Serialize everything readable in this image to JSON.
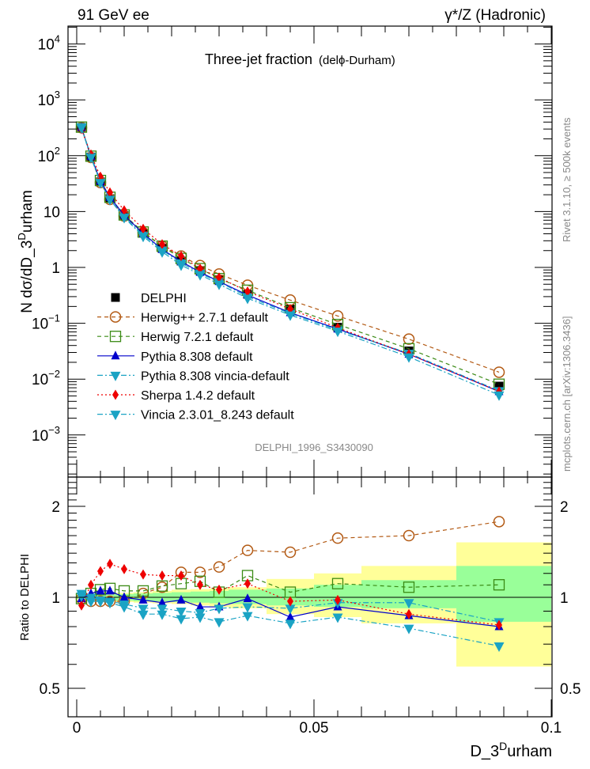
{
  "header": {
    "left_label": "91 GeV ee",
    "right_label": "γ*/Z (Hadronic)"
  },
  "side_labels": {
    "rivet": "Rivet 3.1.10, ≥ 500k events",
    "mcplots": "mcplots.cern.ch [arXiv:1306.3436]"
  },
  "watermark": "DELPHI_1996_S3430090",
  "chart_data": [
    {
      "type": "line",
      "panel": "main",
      "title": "Three-jet fraction",
      "subtitle": "(delϕ-Durham)",
      "xlabel": "D_3^Durham",
      "ylabel": "N dσ/dD_3^Durham",
      "yscale": "log",
      "ylim": [
        0.0002,
        20000
      ],
      "xlim": [
        -0.0015,
        0.1015
      ],
      "ytick_labels": [
        "10^4",
        "10^3",
        "10^2",
        "10",
        "1",
        "10^-1",
        "10^-2",
        "10^-3"
      ],
      "ytick_values": [
        10000,
        1000,
        100,
        10,
        1,
        0.1,
        0.01,
        0.001
      ],
      "legend_position": "center-left",
      "x": [
        0.001,
        0.003,
        0.005,
        0.007,
        0.01,
        0.014,
        0.018,
        0.022,
        0.026,
        0.03,
        0.036,
        0.045,
        0.055,
        0.07,
        0.089
      ],
      "series": [
        {
          "name": "DELPHI",
          "color": "#000000",
          "marker": "square-filled",
          "line": "none",
          "values": [
            320,
            95,
            34,
            17,
            8.5,
            4.1,
            2.2,
            1.3,
            0.88,
            0.6,
            0.33,
            0.18,
            0.085,
            0.032,
            0.0075
          ]
        },
        {
          "name": "Herwig++ 2.7.1 default",
          "color": "#b35a14",
          "marker": "circle-open",
          "line": "dashed",
          "values": [
            318,
            93,
            33,
            16.5,
            8.3,
            4.2,
            2.4,
            1.6,
            1.08,
            0.76,
            0.48,
            0.26,
            0.135,
            0.052,
            0.0133
          ]
        },
        {
          "name": "Herwig 7.2.1 default",
          "color": "#3a8a14",
          "marker": "square-open",
          "line": "dashed",
          "values": [
            325,
            98,
            36,
            18,
            8.7,
            4.3,
            2.4,
            1.45,
            0.95,
            0.63,
            0.39,
            0.19,
            0.095,
            0.035,
            0.0081
          ]
        },
        {
          "name": "Pythia 8.308 default",
          "color": "#0000cc",
          "marker": "triangle-up",
          "line": "solid",
          "values": [
            322,
            97,
            35,
            18,
            8.6,
            4.05,
            2.1,
            1.28,
            0.82,
            0.56,
            0.32,
            0.155,
            0.079,
            0.028,
            0.006
          ]
        },
        {
          "name": "Pythia 8.308 vincia-default",
          "color": "#1aa3c4",
          "marker": "triangle-down",
          "line": "dashdot",
          "values": [
            330,
            96,
            33,
            16.5,
            8.0,
            3.8,
            2.05,
            1.2,
            0.78,
            0.55,
            0.3,
            0.15,
            0.076,
            0.029,
            0.0062
          ]
        },
        {
          "name": "Sherpa 1.4.2 default",
          "color": "#ee0000",
          "marker": "diamond",
          "line": "dotted",
          "values": [
            300,
            105,
            42,
            22,
            10.5,
            4.9,
            2.6,
            1.6,
            0.95,
            0.66,
            0.37,
            0.18,
            0.083,
            0.028,
            0.006
          ]
        },
        {
          "name": "Vincia 2.3.01_8.243 default",
          "color": "#1aa3c4",
          "marker": "triangle-down",
          "line": "dashdot",
          "values": [
            315,
            93,
            33,
            16.5,
            7.8,
            3.6,
            1.9,
            1.1,
            0.74,
            0.5,
            0.28,
            0.14,
            0.072,
            0.025,
            0.0052
          ]
        }
      ]
    },
    {
      "type": "line",
      "panel": "ratio",
      "ylabel": "Ratio to DELPHI",
      "xlabel": "D_3^Durham",
      "yscale": "log",
      "ylim": [
        0.4,
        2.5
      ],
      "xlim": [
        -0.0015,
        0.1015
      ],
      "ytick_labels": [
        "0.5",
        "1",
        "2"
      ],
      "ytick_values": [
        0.5,
        1,
        2
      ],
      "xtick_labels": [
        "0",
        "0.05",
        "0.1"
      ],
      "xtick_values": [
        0,
        0.05,
        0.1
      ],
      "x": [
        0.001,
        0.003,
        0.005,
        0.007,
        0.01,
        0.014,
        0.018,
        0.022,
        0.026,
        0.03,
        0.036,
        0.045,
        0.055,
        0.07,
        0.089
      ],
      "bands": {
        "bin_edges": [
          0.0,
          0.002,
          0.004,
          0.006,
          0.008,
          0.012,
          0.016,
          0.02,
          0.024,
          0.028,
          0.032,
          0.04,
          0.05,
          0.06,
          0.08,
          0.1
        ],
        "stat_color": "#99ff99",
        "total_color": "#ffff99",
        "stat_lo": [
          0.99,
          0.99,
          0.985,
          0.98,
          0.975,
          0.97,
          0.97,
          0.965,
          0.96,
          0.955,
          0.95,
          0.94,
          0.93,
          0.92,
          0.83
        ],
        "stat_hi": [
          1.01,
          1.01,
          1.015,
          1.02,
          1.025,
          1.03,
          1.035,
          1.04,
          1.045,
          1.05,
          1.06,
          1.07,
          1.1,
          1.14,
          1.27
        ],
        "tot_lo": [
          0.985,
          0.98,
          0.975,
          0.97,
          0.965,
          0.96,
          0.955,
          0.95,
          0.94,
          0.93,
          0.92,
          0.88,
          0.86,
          0.82,
          0.59
        ],
        "tot_hi": [
          1.015,
          1.02,
          1.025,
          1.03,
          1.035,
          1.04,
          1.05,
          1.06,
          1.065,
          1.07,
          1.08,
          1.15,
          1.2,
          1.27,
          1.52
        ]
      },
      "series": [
        {
          "name": "Herwig++ 2.7.1 default",
          "color": "#b35a14",
          "marker": "circle-open",
          "line": "dashed",
          "values": [
            0.99,
            0.97,
            0.97,
            0.97,
            0.97,
            1.03,
            1.08,
            1.21,
            1.21,
            1.26,
            1.43,
            1.41,
            1.57,
            1.6,
            1.78
          ]
        },
        {
          "name": "Herwig 7.2.1 default",
          "color": "#3a8a14",
          "marker": "square-open",
          "line": "dashed",
          "values": [
            0.99,
            1.03,
            1.06,
            1.07,
            1.05,
            1.05,
            1.09,
            1.11,
            1.13,
            1.04,
            1.18,
            1.04,
            1.11,
            1.08,
            1.1
          ]
        },
        {
          "name": "Pythia 8.308 default",
          "color": "#0000cc",
          "marker": "triangle-up",
          "line": "solid",
          "values": [
            0.99,
            1.03,
            1.05,
            1.05,
            1.0,
            0.98,
            0.96,
            0.98,
            0.93,
            0.93,
            0.99,
            0.86,
            0.93,
            0.87,
            0.8
          ]
        },
        {
          "name": "Pythia 8.308 vincia-default",
          "color": "#1aa3c4",
          "marker": "triangle-down",
          "line": "dashdot",
          "values": [
            1.03,
            1.0,
            0.98,
            0.97,
            0.95,
            0.92,
            0.92,
            0.9,
            0.89,
            0.92,
            0.93,
            0.92,
            0.96,
            0.96,
            0.83
          ]
        },
        {
          "name": "Sherpa 1.4.2 default",
          "color": "#ee0000",
          "marker": "diamond",
          "line": "dotted",
          "values": [
            0.94,
            1.1,
            1.22,
            1.29,
            1.24,
            1.19,
            1.18,
            1.18,
            1.1,
            1.06,
            1.11,
            0.97,
            0.98,
            0.88,
            0.81
          ]
        },
        {
          "name": "Vincia 2.3.01_8.243 default",
          "color": "#1aa3c4",
          "marker": "triangle-down",
          "line": "dashdot",
          "values": [
            1.01,
            0.97,
            0.97,
            0.96,
            0.93,
            0.88,
            0.88,
            0.85,
            0.86,
            0.83,
            0.87,
            0.82,
            0.86,
            0.79,
            0.69
          ]
        }
      ]
    }
  ]
}
